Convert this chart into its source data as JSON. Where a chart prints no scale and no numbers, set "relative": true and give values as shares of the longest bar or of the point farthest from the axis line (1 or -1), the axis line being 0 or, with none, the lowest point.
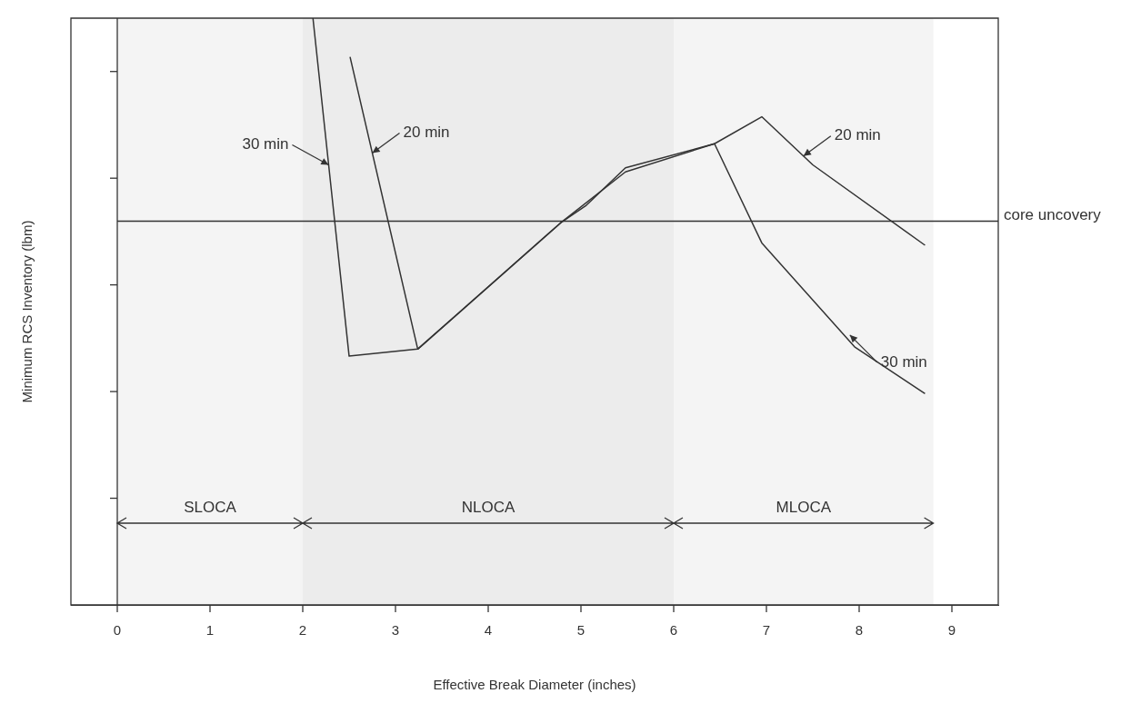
{
  "chart_data": {
    "type": "line",
    "xlabel": "Effective Break Diameter (inches)",
    "ylabel": "Minimum RCS Inventory (lbm)",
    "relative": true,
    "xlim": [
      -0.5,
      9.5
    ],
    "xticks": [
      0,
      1,
      2,
      3,
      4,
      5,
      6,
      7,
      8,
      9
    ],
    "grid": false,
    "legend": false,
    "marker": "none",
    "line_style": "solid",
    "series": [
      {
        "x": [
          2.11,
          2.5,
          3.24,
          4.78,
          5.48,
          6.44,
          6.95,
          7.95,
          8.71
        ],
        "values": [
          1.0,
          0.424,
          0.436,
          0.651,
          0.738,
          0.786,
          0.617,
          0.44,
          0.36
        ],
        "color": "#333333"
      },
      {
        "x": [
          2.51,
          3.24,
          4.78,
          5.05,
          5.48,
          6.44,
          6.95,
          7.5,
          8.71
        ],
        "values": [
          0.934,
          0.436,
          0.651,
          0.68,
          0.745,
          0.786,
          0.832,
          0.75,
          0.613
        ],
        "color": "#333333"
      }
    ],
    "ref_lines": [
      {
        "axis": "y",
        "value": 0.654,
        "label": "core uncovery",
        "color": "#333333"
      },
      {
        "axis": "x",
        "value": 0,
        "color": "#333333"
      }
    ],
    "bands": [
      {
        "axis": "x",
        "from": 0,
        "to": 2,
        "label": "SLOCA",
        "color": "#f4f4f4"
      },
      {
        "axis": "x",
        "from": 2,
        "to": 6,
        "label": "NLOCA",
        "color": "#ececec"
      },
      {
        "axis": "x",
        "from": 6,
        "to": 8.8,
        "label": "MLOCA",
        "color": "#f4f4f4"
      }
    ],
    "annotations": [
      {
        "text": "30 min",
        "x": 2.279,
        "y": 0.75
      },
      {
        "text": "20 min",
        "x": 2.75,
        "y": 0.77
      },
      {
        "text": "20 min",
        "x": 7.4,
        "y": 0.765
      },
      {
        "text": "30 min",
        "x": 7.9,
        "y": 0.46
      }
    ]
  }
}
